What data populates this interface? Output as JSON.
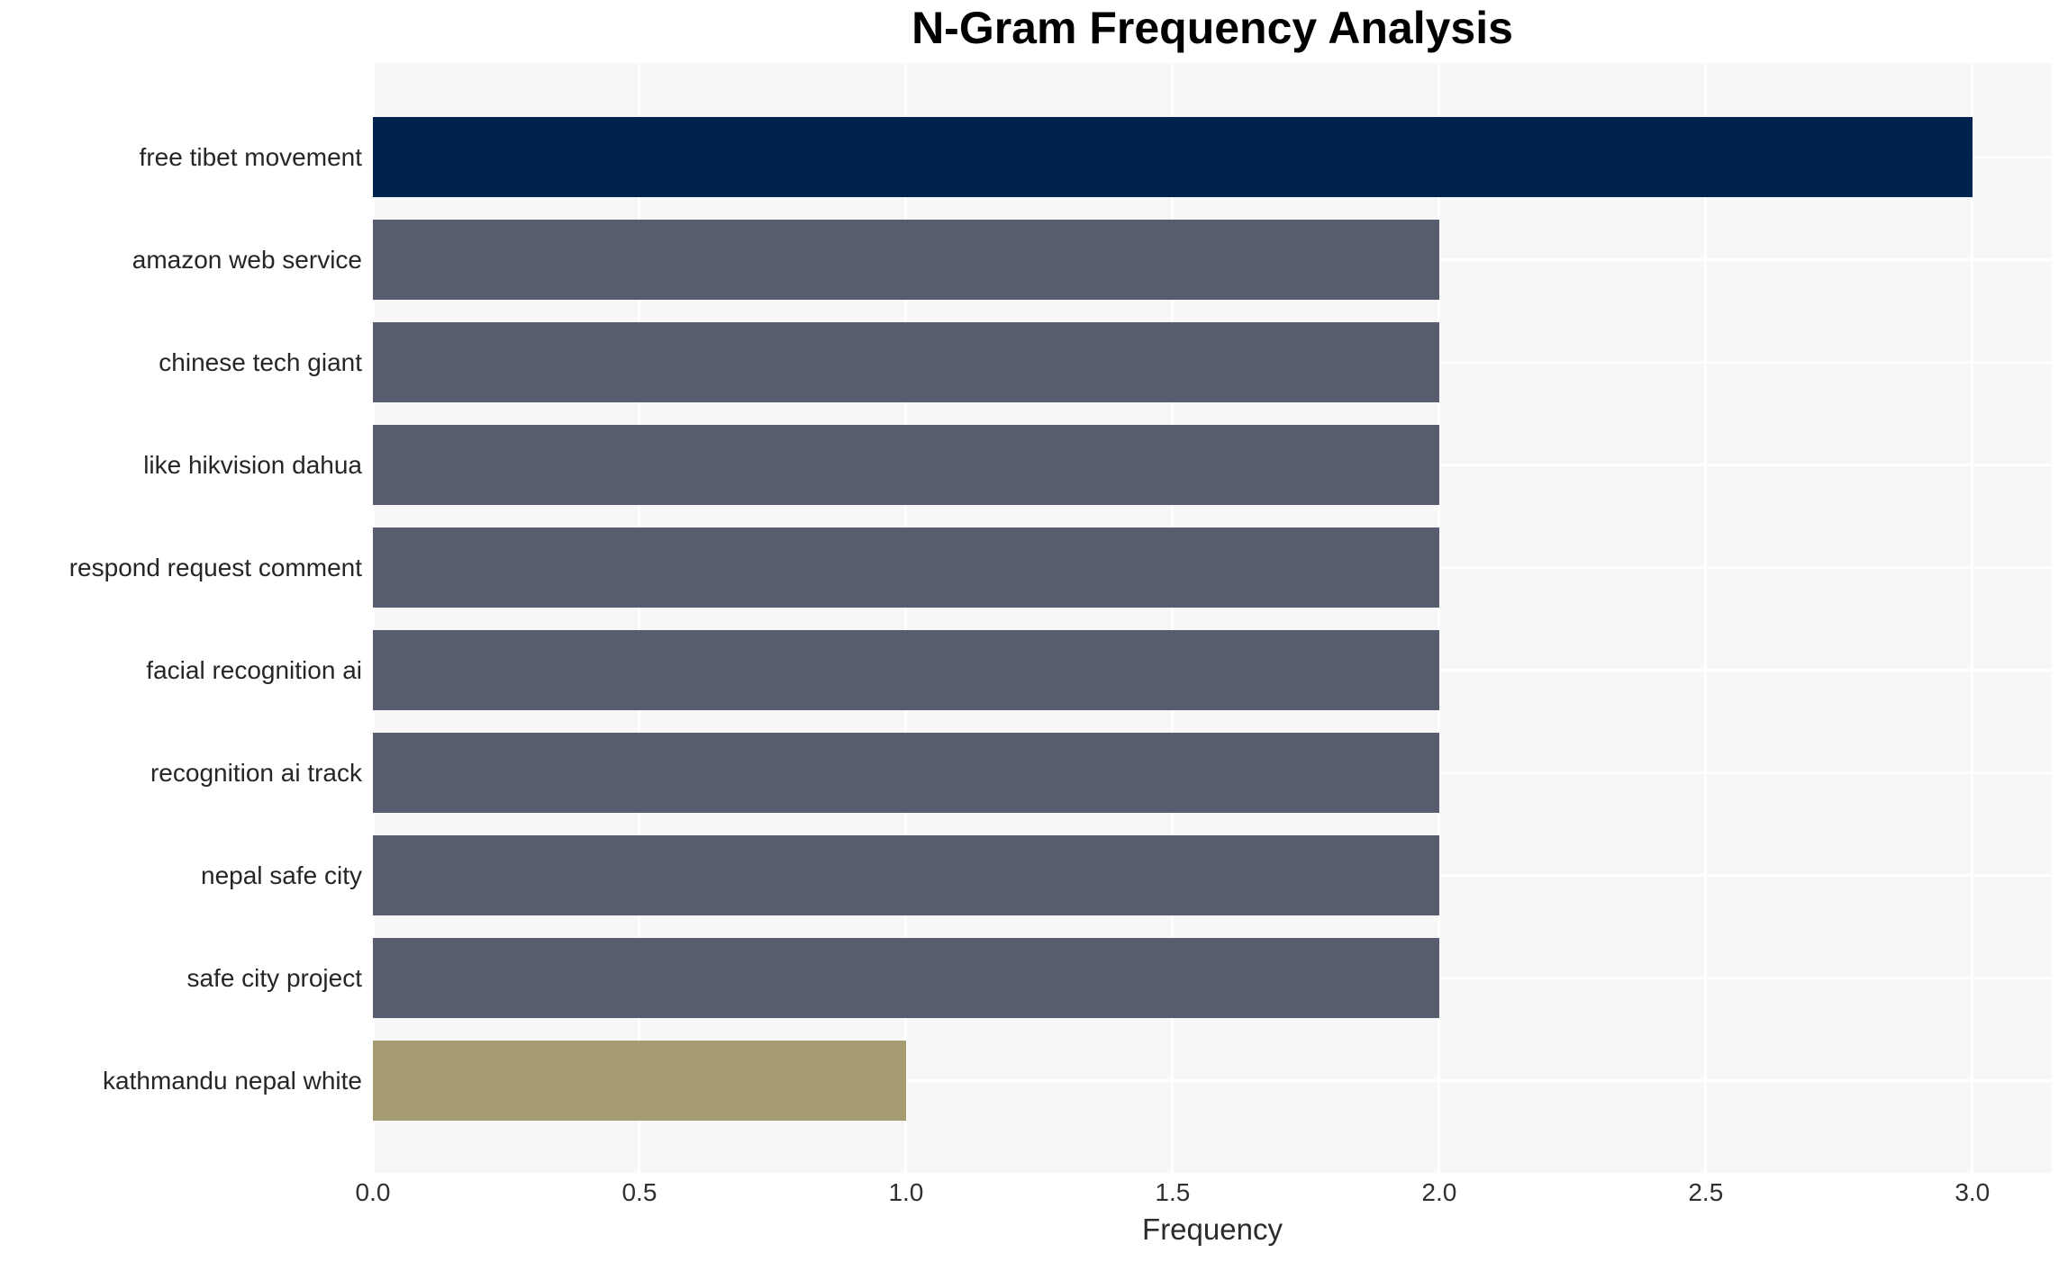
{
  "chart_data": {
    "type": "bar",
    "orientation": "horizontal",
    "title": "N-Gram Frequency Analysis",
    "xlabel": "Frequency",
    "ylabel": "",
    "categories": [
      "free tibet movement",
      "amazon web service",
      "chinese tech giant",
      "like hikvision dahua",
      "respond request comment",
      "facial recognition ai",
      "recognition ai track",
      "nepal safe city",
      "safe city project",
      "kathmandu nepal white"
    ],
    "values": [
      3,
      2,
      2,
      2,
      2,
      2,
      2,
      2,
      2,
      1
    ],
    "bar_colors": [
      "#00224e",
      "#575d6e",
      "#575d6e",
      "#575d6e",
      "#575d6e",
      "#575d6e",
      "#575d6e",
      "#575d6e",
      "#575d6e",
      "#a59c72"
    ],
    "xtick_labels": [
      "0.0",
      "0.5",
      "1.0",
      "1.5",
      "2.0",
      "2.5",
      "3.0"
    ],
    "xtick_values": [
      0,
      0.5,
      1,
      1.5,
      2,
      2.5,
      3
    ],
    "xlim": [
      0,
      3.149
    ],
    "grid": "white gridlines: vertical at x ticks, horizontal at category centers",
    "legend": false,
    "panel_background": "#f7f7f7",
    "gridline_color": "#ffffff"
  }
}
